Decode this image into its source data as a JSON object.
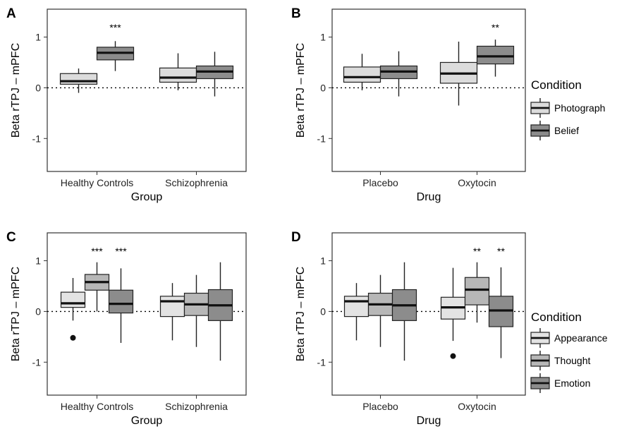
{
  "colors": {
    "fill_light": "#e3e3e3",
    "fill_mid": "#b7b7b7",
    "fill_dark": "#8c8c8c"
  },
  "legend_top": {
    "title": "Condition",
    "items": [
      {
        "label": "Photograph",
        "color": "#dcdcdc"
      },
      {
        "label": "Belief",
        "color": "#8c8c8c"
      }
    ]
  },
  "legend_bottom": {
    "title": "Condition",
    "items": [
      {
        "label": "Appearance",
        "color": "#e3e3e3"
      },
      {
        "label": "Thought",
        "color": "#b7b7b7"
      },
      {
        "label": "Emotion",
        "color": "#8c8c8c"
      }
    ]
  },
  "chart_data": [
    {
      "panel": "A",
      "type": "box",
      "xlabel": "Group",
      "ylabel": "Beta rTPJ – mPFC",
      "ylim": [
        -1.65,
        1.55
      ],
      "yticks": [
        -1,
        0,
        1
      ],
      "reference_line": 0,
      "categories": [
        "Healthy Controls",
        "Schizophrenia"
      ],
      "series": [
        {
          "name": "Photograph",
          "color": "#dcdcdc",
          "boxes": [
            {
              "min": -0.1,
              "q1": 0.07,
              "median": 0.13,
              "q3": 0.28,
              "max": 0.38
            },
            {
              "min": -0.05,
              "q1": 0.11,
              "median": 0.2,
              "q3": 0.39,
              "max": 0.68
            }
          ]
        },
        {
          "name": "Belief",
          "color": "#8c8c8c",
          "boxes": [
            {
              "min": 0.33,
              "q1": 0.55,
              "median": 0.69,
              "q3": 0.8,
              "max": 0.92
            },
            {
              "min": -0.17,
              "q1": 0.18,
              "median": 0.32,
              "q3": 0.43,
              "max": 0.71
            }
          ]
        }
      ],
      "outliers": [],
      "annotations": [
        {
          "text": "***",
          "category": "Healthy Controls"
        }
      ]
    },
    {
      "panel": "B",
      "type": "box",
      "xlabel": "Drug",
      "ylabel": "Beta rTPJ – mPFC",
      "ylim": [
        -1.65,
        1.55
      ],
      "yticks": [
        -1,
        0,
        1
      ],
      "reference_line": 0,
      "categories": [
        "Placebo",
        "Oxytocin"
      ],
      "series": [
        {
          "name": "Photograph",
          "color": "#dcdcdc",
          "boxes": [
            {
              "min": -0.05,
              "q1": 0.11,
              "median": 0.21,
              "q3": 0.41,
              "max": 0.67
            },
            {
              "min": -0.35,
              "q1": 0.09,
              "median": 0.28,
              "q3": 0.5,
              "max": 0.91
            }
          ]
        },
        {
          "name": "Belief",
          "color": "#8c8c8c",
          "boxes": [
            {
              "min": -0.17,
              "q1": 0.18,
              "median": 0.32,
              "q3": 0.43,
              "max": 0.72
            },
            {
              "min": 0.22,
              "q1": 0.47,
              "median": 0.62,
              "q3": 0.82,
              "max": 0.95
            }
          ]
        }
      ],
      "outliers": [],
      "annotations": [
        {
          "text": "**",
          "category": "Oxytocin"
        }
      ]
    },
    {
      "panel": "C",
      "type": "box",
      "xlabel": "Group",
      "ylabel": "Beta rTPJ – mPFC",
      "ylim": [
        -1.65,
        1.55
      ],
      "yticks": [
        -1,
        0,
        1
      ],
      "reference_line": 0,
      "categories": [
        "Healthy Controls",
        "Schizophrenia"
      ],
      "series": [
        {
          "name": "Appearance",
          "color": "#e3e3e3",
          "boxes": [
            {
              "min": -0.18,
              "q1": 0.08,
              "median": 0.16,
              "q3": 0.38,
              "max": 0.66
            },
            {
              "min": -0.57,
              "q1": -0.1,
              "median": 0.2,
              "q3": 0.3,
              "max": 0.56
            }
          ]
        },
        {
          "name": "Thought",
          "color": "#b7b7b7",
          "boxes": [
            {
              "min": 0.0,
              "q1": 0.42,
              "median": 0.58,
              "q3": 0.73,
              "max": 0.97
            },
            {
              "min": -0.7,
              "q1": -0.08,
              "median": 0.14,
              "q3": 0.36,
              "max": 0.72
            }
          ]
        },
        {
          "name": "Emotion",
          "color": "#8c8c8c",
          "boxes": [
            {
              "min": -0.62,
              "q1": -0.03,
              "median": 0.15,
              "q3": 0.42,
              "max": 0.85
            },
            {
              "min": -0.97,
              "q1": -0.18,
              "median": 0.12,
              "q3": 0.43,
              "max": 0.97
            }
          ]
        }
      ],
      "outliers": [
        {
          "category": "Healthy Controls",
          "series": "Appearance",
          "value": -0.52
        }
      ],
      "annotations": [
        {
          "text": "***",
          "category": "Healthy Controls",
          "series": "Thought"
        },
        {
          "text": "***",
          "category": "Healthy Controls",
          "series": "Emotion"
        }
      ]
    },
    {
      "panel": "D",
      "type": "box",
      "xlabel": "Drug",
      "ylabel": "Beta rTPJ – mPFC",
      "ylim": [
        -1.65,
        1.55
      ],
      "yticks": [
        -1,
        0,
        1
      ],
      "reference_line": 0,
      "categories": [
        "Placebo",
        "Oxytocin"
      ],
      "series": [
        {
          "name": "Appearance",
          "color": "#e3e3e3",
          "boxes": [
            {
              "min": -0.57,
              "q1": -0.1,
              "median": 0.2,
              "q3": 0.3,
              "max": 0.56
            },
            {
              "min": -0.58,
              "q1": -0.15,
              "median": 0.08,
              "q3": 0.28,
              "max": 0.86
            }
          ]
        },
        {
          "name": "Thought",
          "color": "#b7b7b7",
          "boxes": [
            {
              "min": -0.7,
              "q1": -0.08,
              "median": 0.14,
              "q3": 0.36,
              "max": 0.72
            },
            {
              "min": -0.22,
              "q1": 0.13,
              "median": 0.43,
              "q3": 0.67,
              "max": 0.97
            }
          ]
        },
        {
          "name": "Emotion",
          "color": "#8c8c8c",
          "boxes": [
            {
              "min": -0.97,
              "q1": -0.18,
              "median": 0.12,
              "q3": 0.43,
              "max": 0.97
            },
            {
              "min": -0.92,
              "q1": -0.3,
              "median": 0.02,
              "q3": 0.3,
              "max": 0.87
            }
          ]
        }
      ],
      "outliers": [
        {
          "category": "Oxytocin",
          "series": "Appearance",
          "value": -0.88
        }
      ],
      "annotations": [
        {
          "text": "**",
          "category": "Oxytocin",
          "series": "Thought"
        },
        {
          "text": "**",
          "category": "Oxytocin",
          "series": "Emotion"
        }
      ]
    }
  ]
}
